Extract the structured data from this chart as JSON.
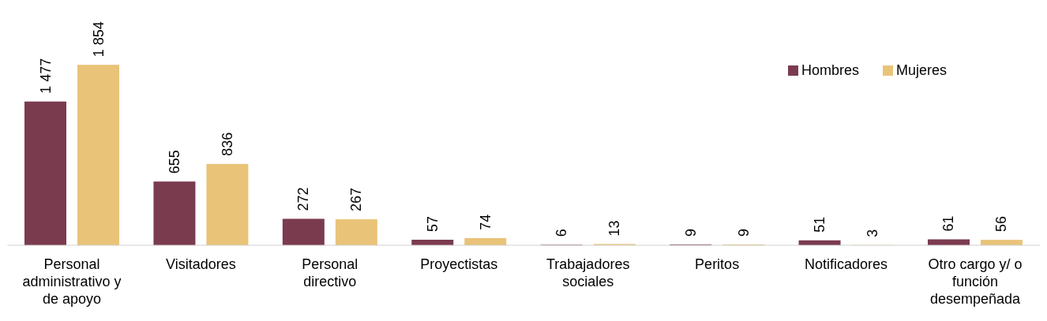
{
  "chart_data": {
    "type": "bar",
    "categories": [
      "Personal administrativo y de apoyo",
      "Visitadores",
      "Personal directivo",
      "Proyectistas",
      "Trabajadores sociales",
      "Peritos",
      "Notificadores",
      "Otro cargo y/ o función desempeñada"
    ],
    "series": [
      {
        "name": "Hombres",
        "color": "#7b3b4f",
        "values": [
          1477,
          655,
          272,
          57,
          6,
          9,
          51,
          61
        ],
        "value_labels": [
          "1 477",
          "655",
          "272",
          "57",
          "6",
          "9",
          "51",
          "61"
        ]
      },
      {
        "name": "Mujeres",
        "color": "#e9c378",
        "values": [
          1854,
          836,
          267,
          74,
          13,
          9,
          3,
          56
        ],
        "value_labels": [
          "1 854",
          "836",
          "267",
          "74",
          "13",
          "9",
          "3",
          "56"
        ]
      }
    ],
    "ylim": [
      0,
      2520
    ],
    "legend": "top right"
  }
}
